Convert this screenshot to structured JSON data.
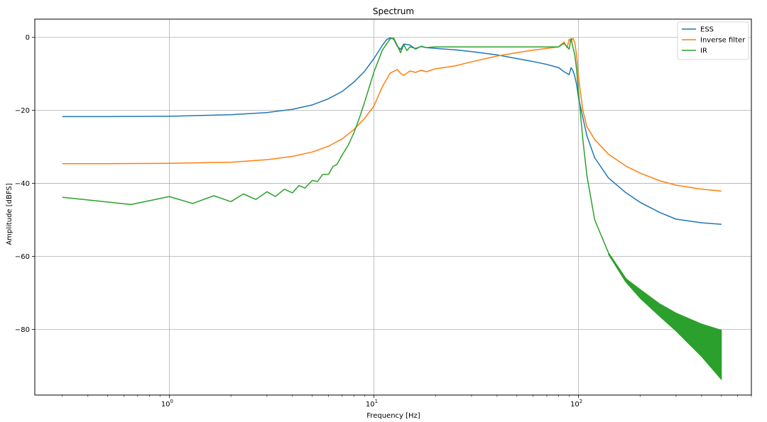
{
  "chart_data": {
    "type": "line",
    "title": "Spectrum",
    "xlabel": "Frequency [Hz]",
    "ylabel": "Amplitude [dBFS]",
    "x_scale": "log",
    "xlim": [
      0.22,
      700
    ],
    "ylim": [
      -98,
      5
    ],
    "x_ticks": [
      {
        "value": 1,
        "base": "10",
        "exp": "0"
      },
      {
        "value": 10,
        "base": "10",
        "exp": "1"
      },
      {
        "value": 100,
        "base": "10",
        "exp": "2"
      }
    ],
    "y_ticks": [
      {
        "value": 0,
        "label": "0"
      },
      {
        "value": -20,
        "label": "−20"
      },
      {
        "value": -40,
        "label": "−40"
      },
      {
        "value": -60,
        "label": "−60"
      },
      {
        "value": -80,
        "label": "−80"
      }
    ],
    "grid": true,
    "legend_position": "top-right",
    "series": [
      {
        "name": "ESS",
        "color": "#1f77b4",
        "x": [
          0.3,
          0.5,
          1,
          2,
          3,
          4,
          5,
          6,
          7,
          8,
          9,
          10,
          11,
          11.5,
          12,
          12.5,
          13,
          13.5,
          14,
          15,
          16,
          17,
          18,
          20,
          25,
          30,
          40,
          50,
          60,
          70,
          80,
          85,
          90,
          92,
          94,
          96,
          98,
          100,
          105,
          110,
          120,
          140,
          170,
          200,
          250,
          300,
          400,
          500
        ],
        "y": [
          -21.7,
          -21.7,
          -21.6,
          -21.2,
          -20.6,
          -19.7,
          -18.5,
          -16.8,
          -14.8,
          -12.2,
          -9.3,
          -5.8,
          -2.2,
          -0.7,
          -0.1,
          -0.5,
          -2.4,
          -3.3,
          -1.8,
          -2.1,
          -3.2,
          -2.4,
          -2.8,
          -3.0,
          -3.4,
          -3.9,
          -4.8,
          -5.8,
          -6.6,
          -7.4,
          -8.3,
          -9.4,
          -10.2,
          -8.3,
          -9.1,
          -10.7,
          -13.0,
          -16.5,
          -22.0,
          -27.0,
          -33.0,
          -38.5,
          -42.5,
          -45.2,
          -48.0,
          -49.8,
          -50.8,
          -51.2
        ]
      },
      {
        "name": "Inverse filter",
        "color": "#ff7f0e",
        "x": [
          0.3,
          0.5,
          1,
          2,
          3,
          4,
          5,
          6,
          7,
          8,
          9,
          10,
          11,
          12,
          13,
          13.5,
          14,
          15,
          16,
          17,
          18,
          20,
          25,
          30,
          40,
          50,
          60,
          70,
          80,
          85,
          88,
          90,
          92,
          94,
          96,
          98,
          100,
          105,
          110,
          120,
          140,
          170,
          200,
          250,
          300,
          400,
          500
        ],
        "y": [
          -34.6,
          -34.6,
          -34.5,
          -34.2,
          -33.5,
          -32.6,
          -31.4,
          -29.8,
          -27.8,
          -25.2,
          -22.2,
          -18.8,
          -13.5,
          -9.8,
          -8.8,
          -9.8,
          -10.4,
          -9.2,
          -9.6,
          -9.0,
          -9.4,
          -8.6,
          -7.8,
          -6.7,
          -5.1,
          -4.2,
          -3.5,
          -3.0,
          -2.6,
          -1.3,
          -2.8,
          -0.5,
          -1.0,
          -0.2,
          -1.5,
          -5.0,
          -11.0,
          -20.0,
          -24.5,
          -28.0,
          -32.0,
          -35.2,
          -37.2,
          -39.3,
          -40.5,
          -41.6,
          -42.1
        ]
      },
      {
        "name": "IR",
        "color": "#2ca02c",
        "x": [
          0.3,
          0.65,
          1,
          1.3,
          1.65,
          2,
          2.3,
          2.65,
          3,
          3.3,
          3.65,
          4,
          4.3,
          4.6,
          5,
          5.3,
          5.6,
          6,
          6.3,
          6.6,
          7,
          7.5,
          8,
          8.5,
          9,
          10,
          11,
          12,
          12.5,
          13,
          13.5,
          14,
          14.5,
          15,
          16,
          17,
          18,
          20,
          25,
          30,
          40,
          50,
          60,
          70,
          80,
          85,
          90,
          92,
          94,
          96,
          98,
          100,
          105,
          110,
          120,
          140,
          170,
          200,
          250,
          300,
          400,
          500
        ],
        "y": [
          -43.8,
          -45.8,
          -43.6,
          -45.5,
          -43.4,
          -45.0,
          -42.9,
          -44.4,
          -42.3,
          -43.6,
          -41.6,
          -42.6,
          -40.6,
          -41.3,
          -39.2,
          -39.5,
          -37.6,
          -37.5,
          -35.4,
          -34.8,
          -32.2,
          -29.5,
          -26.0,
          -22.0,
          -17.8,
          -9.5,
          -3.5,
          -0.4,
          -0.2,
          -2.2,
          -4.2,
          -2.0,
          -3.6,
          -2.6,
          -3.0,
          -2.5,
          -2.8,
          -2.6,
          -2.6,
          -2.6,
          -2.6,
          -2.6,
          -2.6,
          -2.6,
          -2.6,
          -1.6,
          -3.2,
          -0.3,
          -2.8,
          -4.8,
          -9.0,
          -15.0,
          -28.0,
          -38.0,
          -50.0,
          -59.0,
          -66.0,
          -70.0,
          -75.0,
          -78.5,
          -83.0,
          -87.0
        ]
      }
    ],
    "ir_band": {
      "x": [
        140,
        170,
        200,
        250,
        300,
        400,
        500
      ],
      "upper": [
        -59.0,
        -66.0,
        -69.0,
        -73.0,
        -75.5,
        -78.5,
        -80.2
      ],
      "lower": [
        -59.5,
        -67.0,
        -71.5,
        -76.5,
        -80.5,
        -87.5,
        -93.8
      ]
    }
  }
}
